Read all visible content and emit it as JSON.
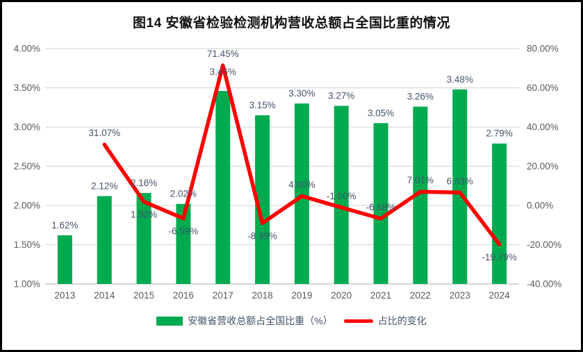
{
  "frame": {
    "title": "图14 安徽省检验检测机构营收总额占全国比重的情况"
  },
  "legend": [
    {
      "label": "安徽省营收总额占全国比重（%）",
      "swatch": "bar",
      "color": "#00AB50"
    },
    {
      "label": "占比的变化",
      "swatch": "line",
      "color": "#FE0000"
    }
  ],
  "chart_data": {
    "type": "combo bar+line",
    "title": "图14 安徽省检验检测机构营收总额占全国比重的情况",
    "categories": [
      "2013",
      "2014",
      "2015",
      "2016",
      "2017",
      "2018",
      "2019",
      "2020",
      "2021",
      "2022",
      "2023",
      "2024"
    ],
    "series": [
      {
        "name": "安徽省营收总额占全国比重（%）",
        "type": "bar",
        "axis": "left",
        "color": "#00AB50",
        "values": [
          1.62,
          2.12,
          2.16,
          2.02,
          3.46,
          3.15,
          3.3,
          3.27,
          3.05,
          3.26,
          3.48,
          2.79
        ],
        "labels": [
          "1.62%",
          "2.12%",
          "2.16%",
          "2.02%",
          "3.46%",
          "3.15%",
          "3.30%",
          "3.27%",
          "3.05%",
          "3.26%",
          "3.48%",
          "2.79%"
        ]
      },
      {
        "name": "占比的变化",
        "type": "line",
        "axis": "right",
        "color": "#FE0000",
        "values": [
          null,
          31.07,
          1.92,
          -6.59,
          71.45,
          -8.99,
          4.8,
          -1.0,
          -6.68,
          7.01,
          6.63,
          -19.79
        ],
        "labels": [
          null,
          "31.07%",
          "1.92%",
          "-6.59%",
          "71.45%",
          "-8.99%",
          "4.80%",
          "-1.00%",
          "-6.68%",
          "7.01%",
          "6.63%",
          "-19.79%"
        ]
      }
    ],
    "left_axis": {
      "min": 1.0,
      "max": 4.0,
      "step": 0.5,
      "ticks": [
        "4.00%",
        "3.50%",
        "3.00%",
        "2.50%",
        "2.00%",
        "1.50%",
        "1.00%"
      ]
    },
    "right_axis": {
      "min": -40,
      "max": 80,
      "step": 20,
      "ticks": [
        "80.00%",
        "60.00%",
        "40.00%",
        "20.00%",
        "0.00%",
        "-20.00%",
        "-40.00%"
      ]
    },
    "grid": true,
    "grid_color": "#D9D9D9",
    "axis_line_color": "#D6D6D6",
    "tick_color": "#595959",
    "label_color": "#44546A",
    "legend_position": "bottom"
  }
}
